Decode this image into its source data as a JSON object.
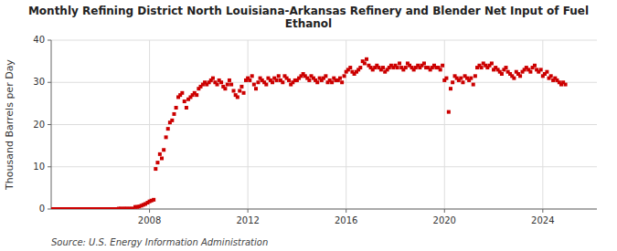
{
  "chart_data": {
    "type": "scatter",
    "title": "Monthly Refining District North Louisiana-Arkansas Refinery and Blender Net Input of Fuel\nEthanol",
    "y_label": "Thousand Barrels per Day",
    "annotations": [
      "Source: U.S. Energy Information Administration"
    ],
    "color": "#cc0000",
    "marker": "square",
    "grid": true,
    "xlim": [
      2004.0,
      2026.2
    ],
    "xticks": [
      2008,
      2012,
      2016,
      2020,
      2024
    ],
    "ylim": [
      0,
      40
    ],
    "yticks": [
      0,
      10,
      20,
      30,
      40
    ],
    "x": [
      2004.0,
      2004.08,
      2004.17,
      2004.25,
      2004.33,
      2004.42,
      2004.5,
      2004.58,
      2004.67,
      2004.75,
      2004.83,
      2004.92,
      2005.0,
      2005.08,
      2005.17,
      2005.25,
      2005.33,
      2005.42,
      2005.5,
      2005.58,
      2005.67,
      2005.75,
      2005.83,
      2005.92,
      2006.0,
      2006.08,
      2006.17,
      2006.25,
      2006.33,
      2006.42,
      2006.5,
      2006.58,
      2006.67,
      2006.75,
      2006.83,
      2006.92,
      2007.0,
      2007.08,
      2007.17,
      2007.25,
      2007.33,
      2007.42,
      2007.5,
      2007.58,
      2007.67,
      2007.75,
      2007.83,
      2007.92,
      2008.0,
      2008.08,
      2008.17,
      2008.25,
      2008.33,
      2008.42,
      2008.5,
      2008.58,
      2008.67,
      2008.75,
      2008.83,
      2008.92,
      2009.0,
      2009.08,
      2009.17,
      2009.25,
      2009.33,
      2009.42,
      2009.5,
      2009.58,
      2009.67,
      2009.75,
      2009.83,
      2009.92,
      2010.0,
      2010.08,
      2010.17,
      2010.25,
      2010.33,
      2010.42,
      2010.5,
      2010.58,
      2010.67,
      2010.75,
      2010.83,
      2010.92,
      2011.0,
      2011.08,
      2011.17,
      2011.25,
      2011.33,
      2011.42,
      2011.5,
      2011.58,
      2011.67,
      2011.75,
      2011.83,
      2011.92,
      2012.0,
      2012.08,
      2012.17,
      2012.25,
      2012.33,
      2012.42,
      2012.5,
      2012.58,
      2012.67,
      2012.75,
      2012.83,
      2012.92,
      2013.0,
      2013.08,
      2013.17,
      2013.25,
      2013.33,
      2013.42,
      2013.5,
      2013.58,
      2013.67,
      2013.75,
      2013.83,
      2013.92,
      2014.0,
      2014.08,
      2014.17,
      2014.25,
      2014.33,
      2014.42,
      2014.5,
      2014.58,
      2014.67,
      2014.75,
      2014.83,
      2014.92,
      2015.0,
      2015.08,
      2015.17,
      2015.25,
      2015.33,
      2015.42,
      2015.5,
      2015.58,
      2015.67,
      2015.75,
      2015.83,
      2015.92,
      2016.0,
      2016.08,
      2016.17,
      2016.25,
      2016.33,
      2016.42,
      2016.5,
      2016.58,
      2016.67,
      2016.75,
      2016.83,
      2016.92,
      2017.0,
      2017.08,
      2017.17,
      2017.25,
      2017.33,
      2017.42,
      2017.5,
      2017.58,
      2017.67,
      2017.75,
      2017.83,
      2017.92,
      2018.0,
      2018.08,
      2018.17,
      2018.25,
      2018.33,
      2018.42,
      2018.5,
      2018.58,
      2018.67,
      2018.75,
      2018.83,
      2018.92,
      2019.0,
      2019.08,
      2019.17,
      2019.25,
      2019.33,
      2019.42,
      2019.5,
      2019.58,
      2019.67,
      2019.75,
      2019.83,
      2019.92,
      2020.0,
      2020.08,
      2020.17,
      2020.25,
      2020.33,
      2020.42,
      2020.5,
      2020.58,
      2020.67,
      2020.75,
      2020.83,
      2020.92,
      2021.0,
      2021.08,
      2021.17,
      2021.25,
      2021.33,
      2021.42,
      2021.5,
      2021.58,
      2021.67,
      2021.75,
      2021.83,
      2021.92,
      2022.0,
      2022.08,
      2022.17,
      2022.25,
      2022.33,
      2022.42,
      2022.5,
      2022.58,
      2022.67,
      2022.75,
      2022.83,
      2022.92,
      2023.0,
      2023.08,
      2023.17,
      2023.25,
      2023.33,
      2023.42,
      2023.5,
      2023.58,
      2023.67,
      2023.75,
      2023.83,
      2023.92,
      2024.0,
      2024.08,
      2024.17,
      2024.25,
      2024.33,
      2024.42,
      2024.5,
      2024.58,
      2024.67,
      2024.75,
      2024.83,
      2024.92
    ],
    "values": [
      0.0,
      0.0,
      0.0,
      0.0,
      0.0,
      0.0,
      0.0,
      0.0,
      0.0,
      0.0,
      0.0,
      0.0,
      0.0,
      0.0,
      0.0,
      0.0,
      0.0,
      0.0,
      0.0,
      0.0,
      0.0,
      0.0,
      0.0,
      0.0,
      0.0,
      0.0,
      0.0,
      0.0,
      0.0,
      0.0,
      0.0,
      0.0,
      0.0,
      0.1,
      0.1,
      0.1,
      0.1,
      0.1,
      0.1,
      0.1,
      0.1,
      0.5,
      0.5,
      0.6,
      0.8,
      1.0,
      1.2,
      1.5,
      1.8,
      2.0,
      2.2,
      9.5,
      11.0,
      13.0,
      12.0,
      14.0,
      17.0,
      19.0,
      20.5,
      21.0,
      22.5,
      24.0,
      26.5,
      27.0,
      27.5,
      25.5,
      24.0,
      26.0,
      26.5,
      27.0,
      27.5,
      27.0,
      28.5,
      29.0,
      29.5,
      30.0,
      29.5,
      30.0,
      30.5,
      31.0,
      30.0,
      29.5,
      30.5,
      30.0,
      29.0,
      28.5,
      29.5,
      30.5,
      29.5,
      28.0,
      27.0,
      26.5,
      28.0,
      29.0,
      27.5,
      30.5,
      31.0,
      30.5,
      31.5,
      29.5,
      28.5,
      30.0,
      31.0,
      30.5,
      30.0,
      29.5,
      31.0,
      30.5,
      30.0,
      31.0,
      30.5,
      31.5,
      30.5,
      30.0,
      31.5,
      31.0,
      30.5,
      29.5,
      30.0,
      30.5,
      30.5,
      31.0,
      31.5,
      32.0,
      31.5,
      31.0,
      30.5,
      31.5,
      31.0,
      30.5,
      30.0,
      31.0,
      30.5,
      31.0,
      31.5,
      30.0,
      30.5,
      30.0,
      31.0,
      30.5,
      30.5,
      31.0,
      30.0,
      31.5,
      32.5,
      33.0,
      33.5,
      32.5,
      32.0,
      32.5,
      33.0,
      33.5,
      35.0,
      34.5,
      35.5,
      34.0,
      33.5,
      33.0,
      33.5,
      34.0,
      33.5,
      33.0,
      33.5,
      32.5,
      33.0,
      33.5,
      34.0,
      33.5,
      34.0,
      33.5,
      34.5,
      33.5,
      33.0,
      33.5,
      34.5,
      34.0,
      33.5,
      33.0,
      33.5,
      34.0,
      33.5,
      34.0,
      34.5,
      33.5,
      33.5,
      33.0,
      33.5,
      34.0,
      33.5,
      33.5,
      33.0,
      34.0,
      30.5,
      31.0,
      23.0,
      28.5,
      30.0,
      31.5,
      31.0,
      30.5,
      31.0,
      30.0,
      31.5,
      31.0,
      30.5,
      31.0,
      29.5,
      31.5,
      33.5,
      34.0,
      33.5,
      34.5,
      34.0,
      33.5,
      34.0,
      34.5,
      33.0,
      33.5,
      33.0,
      32.5,
      32.0,
      33.0,
      33.5,
      32.5,
      32.0,
      31.5,
      31.0,
      32.5,
      32.0,
      31.5,
      32.5,
      33.0,
      33.5,
      33.0,
      32.5,
      33.5,
      34.0,
      33.0,
      32.5,
      33.0,
      31.5,
      32.0,
      32.5,
      31.0,
      31.5,
      30.5,
      31.0,
      30.5,
      30.0,
      29.5,
      30.0,
      29.5
    ]
  }
}
